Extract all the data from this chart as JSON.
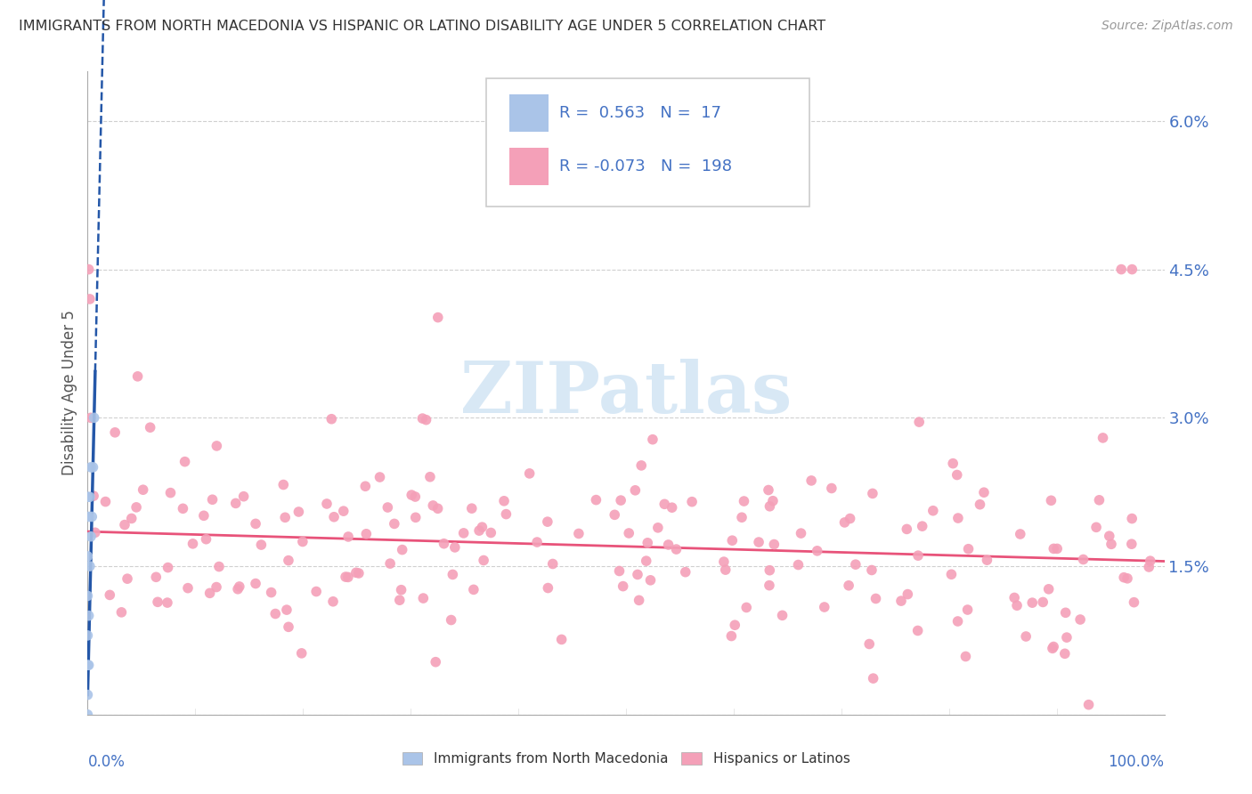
{
  "title": "IMMIGRANTS FROM NORTH MACEDONIA VS HISPANIC OR LATINO DISABILITY AGE UNDER 5 CORRELATION CHART",
  "source": "Source: ZipAtlas.com",
  "ylabel": "Disability Age Under 5",
  "r_blue": 0.563,
  "n_blue": 17,
  "r_pink": -0.073,
  "n_pink": 198,
  "blue_color": "#aac4e8",
  "pink_color": "#f4a0b8",
  "blue_line_color": "#2457a8",
  "pink_line_color": "#e8537a",
  "legend_blue_label": "Immigrants from North Macedonia",
  "legend_pink_label": "Hispanics or Latinos",
  "background_color": "#ffffff",
  "grid_color": "#d0d0d0",
  "title_color": "#333333",
  "axis_color": "#4472c4",
  "watermark_color": "#c8dff2",
  "ytick_vals": [
    0.0,
    0.015,
    0.03,
    0.045,
    0.06
  ],
  "ytick_labels": [
    "",
    "1.5%",
    "3.0%",
    "4.5%",
    "6.0%"
  ],
  "blue_seed": 99,
  "pink_seed": 42
}
